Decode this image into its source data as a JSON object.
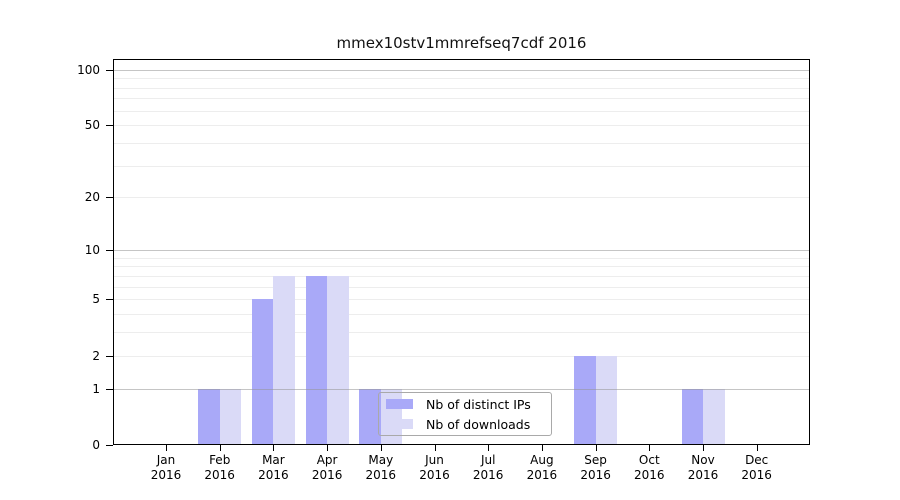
{
  "title": "mmex10stv1mmrefseq7cdf 2016",
  "chart_data": {
    "type": "bar",
    "title": "mmex10stv1mmrefseq7cdf 2016",
    "categories": [
      "Jan 2016",
      "Feb 2016",
      "Mar 2016",
      "Apr 2016",
      "May 2016",
      "Jun 2016",
      "Jul 2016",
      "Aug 2016",
      "Sep 2016",
      "Oct 2016",
      "Nov 2016",
      "Dec 2016"
    ],
    "x_tick_months": [
      "Jan",
      "Feb",
      "Mar",
      "Apr",
      "May",
      "Jun",
      "Jul",
      "Aug",
      "Sep",
      "Oct",
      "Nov",
      "Dec"
    ],
    "x_tick_year": "2016",
    "series": [
      {
        "name": "Nb of distinct IPs",
        "color": "#a9a9f8",
        "values": [
          0,
          1,
          5,
          7,
          1,
          0,
          0,
          0,
          2,
          0,
          1,
          0
        ]
      },
      {
        "name": "Nb of downloads",
        "color": "#dadaf7",
        "values": [
          0,
          1,
          7,
          7,
          1,
          0,
          0,
          0,
          2,
          0,
          1,
          0
        ]
      }
    ],
    "y_axis": {
      "scale": "log1p",
      "tick_values": [
        0,
        1,
        2,
        5,
        10,
        20,
        50,
        100
      ],
      "tick_labels": [
        "0",
        "1",
        "2",
        "5",
        "10",
        "20",
        "50",
        "100"
      ],
      "range": [
        0,
        101
      ],
      "major_gridlines": [
        1,
        10,
        100
      ],
      "minor_gridlines": [
        2,
        3,
        4,
        5,
        6,
        7,
        8,
        9,
        20,
        30,
        40,
        50,
        60,
        70,
        80,
        90
      ]
    },
    "grid": true,
    "legend_position": "inside lower-center, overlapping May bars",
    "xlabel": "",
    "ylabel": ""
  },
  "colors": {
    "bar_distinct_ips": "#a9a9f8",
    "bar_downloads": "#dadaf7",
    "major_grid": "#c6c6c6",
    "minor_grid": "#ededed",
    "axis": "#000000",
    "legend_border": "#a9a9a9",
    "background": "#ffffff"
  }
}
